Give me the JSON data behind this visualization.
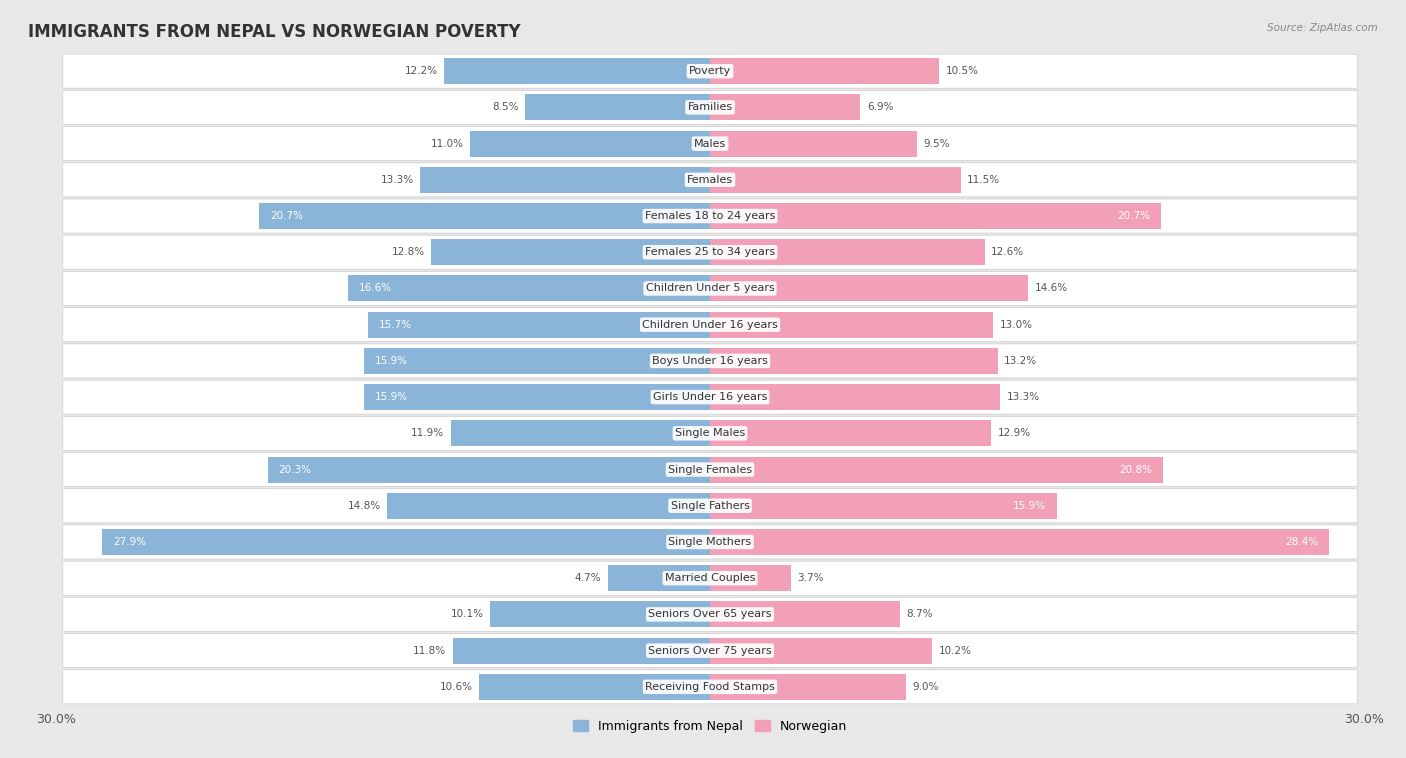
{
  "title": "IMMIGRANTS FROM NEPAL VS NORWEGIAN POVERTY",
  "source": "Source: ZipAtlas.com",
  "categories": [
    "Poverty",
    "Families",
    "Males",
    "Females",
    "Females 18 to 24 years",
    "Females 25 to 34 years",
    "Children Under 5 years",
    "Children Under 16 years",
    "Boys Under 16 years",
    "Girls Under 16 years",
    "Single Males",
    "Single Females",
    "Single Fathers",
    "Single Mothers",
    "Married Couples",
    "Seniors Over 65 years",
    "Seniors Over 75 years",
    "Receiving Food Stamps"
  ],
  "nepal_values": [
    12.2,
    8.5,
    11.0,
    13.3,
    20.7,
    12.8,
    16.6,
    15.7,
    15.9,
    15.9,
    11.9,
    20.3,
    14.8,
    27.9,
    4.7,
    10.1,
    11.8,
    10.6
  ],
  "norwegian_values": [
    10.5,
    6.9,
    9.5,
    11.5,
    20.7,
    12.6,
    14.6,
    13.0,
    13.2,
    13.3,
    12.9,
    20.8,
    15.9,
    28.4,
    3.7,
    8.7,
    10.2,
    9.0
  ],
  "nepal_color": "#8ab4d8",
  "norwegian_color": "#f2a0b8",
  "nepal_label": "Immigrants from Nepal",
  "norwegian_label": "Norwegian",
  "background_color": "#e8e8e8",
  "bar_row_color": "#ffffff",
  "bar_height": 0.72,
  "xlim": 30.0,
  "x_tick_label": "30.0%",
  "title_fontsize": 12,
  "label_fontsize": 8,
  "value_fontsize": 7.5,
  "white_text_threshold": 15.0
}
